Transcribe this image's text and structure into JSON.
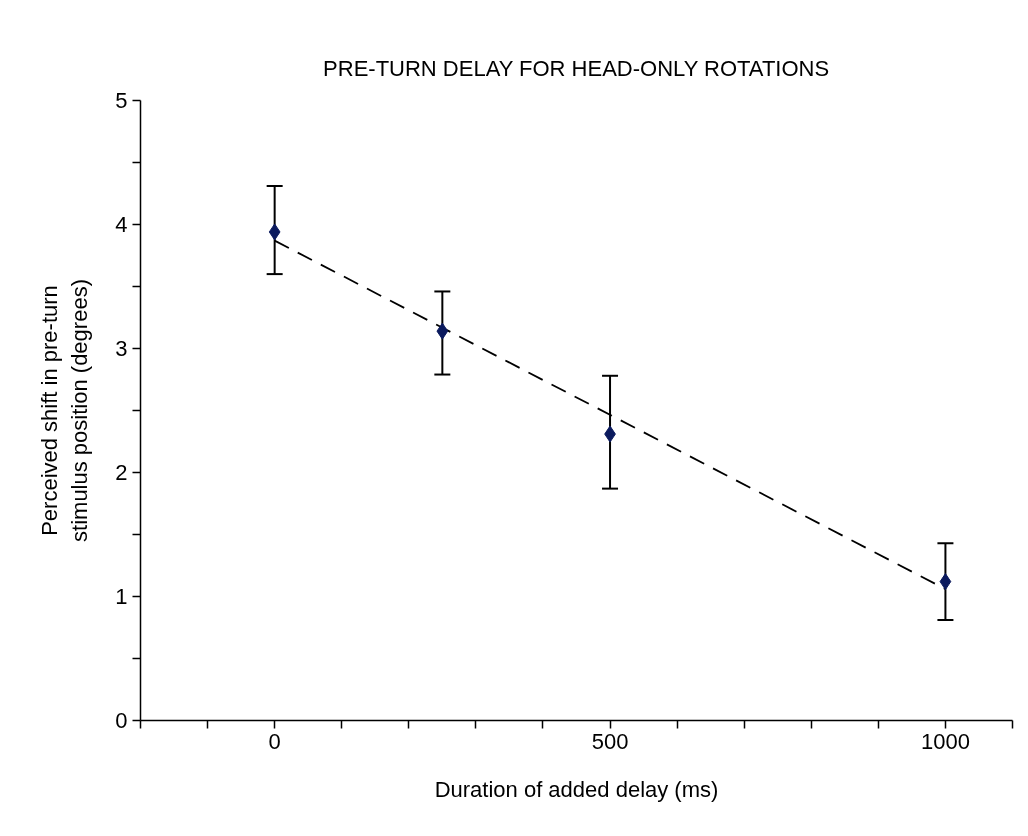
{
  "chart_data": {
    "type": "scatter",
    "title": "PRE-TURN DELAY FOR HEAD-ONLY ROTATIONS",
    "xlabel": "Duration of added delay (ms)",
    "ylabel": "Perceived shift in pre-turn\nstimulus position (degrees)",
    "x": [
      0,
      250,
      500,
      1000
    ],
    "series": [
      {
        "color": "#0b1a5e",
        "marker": "diamond",
        "values": [
          3.94,
          3.14,
          2.31,
          1.12
        ],
        "errors": [
          [
            3.6,
            4.31
          ],
          [
            2.79,
            3.46
          ],
          [
            1.87,
            2.78
          ],
          [
            0.81,
            1.43
          ]
        ]
      },
      {
        "type": "line",
        "color": "#000000",
        "line_style": "dashed",
        "marker": "none",
        "x": [
          0,
          1000
        ],
        "values": [
          3.87,
          1.06
        ]
      }
    ],
    "xlim": [
      -200,
      1100
    ],
    "ylim": [
      0,
      5
    ],
    "xticks": [
      {
        "value": -200,
        "label": null
      },
      {
        "value": -100,
        "label": null
      },
      0,
      {
        "value": 100,
        "label": null
      },
      {
        "value": 200,
        "label": null
      },
      {
        "value": 300,
        "label": null
      },
      {
        "value": 400,
        "label": null
      },
      500,
      {
        "value": 600,
        "label": null
      },
      {
        "value": 700,
        "label": null
      },
      {
        "value": 800,
        "label": null
      },
      {
        "value": 900,
        "label": null
      },
      1000,
      {
        "value": 1100,
        "label": null
      }
    ],
    "yticks": [
      0,
      {
        "value": 0.5,
        "label": null
      },
      1,
      {
        "value": 1.5,
        "label": null
      },
      2,
      {
        "value": 2.5,
        "label": null
      },
      3,
      {
        "value": 3.5,
        "label": null
      },
      4,
      {
        "value": 4.5,
        "label": null
      },
      5
    ],
    "grid": false
  }
}
